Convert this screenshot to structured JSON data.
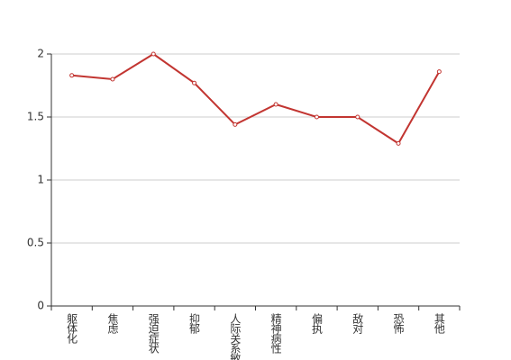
{
  "chart_data": {
    "type": "line",
    "categories": [
      "躯体化",
      "焦虑",
      "强迫症状",
      "抑郁",
      "人际关系敏感",
      "精神病性",
      "偏执",
      "敌对",
      "恐怖",
      "其他"
    ],
    "values": [
      1.83,
      1.8,
      2,
      1.77,
      1.44,
      1.6,
      1.5,
      1.5,
      1.29,
      1.86
    ],
    "color": "#c23531",
    "ylim": [
      0,
      2
    ],
    "yticks": [
      0,
      0.5,
      1,
      1.5,
      2
    ],
    "grid": true
  }
}
